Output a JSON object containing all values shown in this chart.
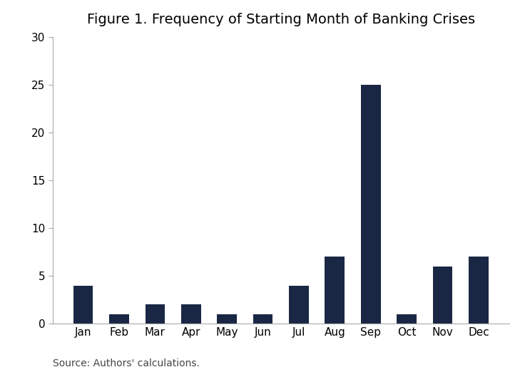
{
  "title": "Figure 1. Frequency of Starting Month of Banking Crises",
  "categories": [
    "Jan",
    "Feb",
    "Mar",
    "Apr",
    "May",
    "Jun",
    "Jul",
    "Aug",
    "Sep",
    "Oct",
    "Nov",
    "Dec"
  ],
  "values": [
    4,
    1,
    2,
    2,
    1,
    1,
    4,
    7,
    25,
    1,
    6,
    7
  ],
  "bar_color": "#1a2744",
  "ylim": [
    0,
    30
  ],
  "yticks": [
    0,
    5,
    10,
    15,
    20,
    25,
    30
  ],
  "source_text": "Source: Authors' calculations.",
  "background_color": "#ffffff",
  "title_fontsize": 14,
  "tick_fontsize": 11,
  "source_fontsize": 10,
  "bar_width": 0.55,
  "spine_color": "#aaaaaa"
}
